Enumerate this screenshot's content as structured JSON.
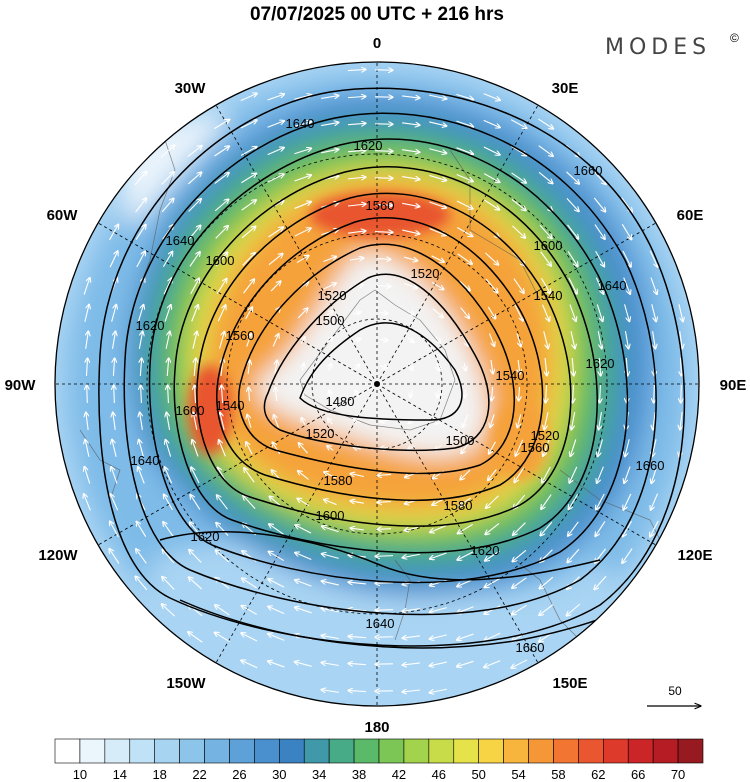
{
  "title": "07/07/2025  00 UTC  + 216 hrs",
  "brand": "MODES",
  "brand_mark": "©",
  "longitude_labels": {
    "top": "0",
    "bottom": "180",
    "left": "90W",
    "right": "90E",
    "nw1": "30W",
    "nw2": "60W",
    "ne1": "30E",
    "ne2": "60E",
    "sw1": "120W",
    "sw2": "150W",
    "se1": "120E",
    "se2": "150E"
  },
  "contour_labels": [
    "1480",
    "1500",
    "1500",
    "1520",
    "1520",
    "1520",
    "1520",
    "1540",
    "1540",
    "1540",
    "1560",
    "1560",
    "1560",
    "1580",
    "1580",
    "1600",
    "1600",
    "1600",
    "1600",
    "1620",
    "1620",
    "1620",
    "1620",
    "1620",
    "1640",
    "1640",
    "1640",
    "1640",
    "1640",
    "1660",
    "1660",
    "1660"
  ],
  "reference_vector": "50",
  "colorbar": {
    "tick_labels": [
      "10",
      "14",
      "18",
      "22",
      "26",
      "30",
      "34",
      "38",
      "42",
      "46",
      "50",
      "54",
      "58",
      "62",
      "66",
      "70"
    ],
    "colors": [
      "#ffffff",
      "#eaf5fc",
      "#d6ecf9",
      "#bfe2f6",
      "#a6d4f1",
      "#8cc4ea",
      "#74b3e2",
      "#5ea1d8",
      "#4a90ce",
      "#3b82c2",
      "#3f99a8",
      "#48ab88",
      "#5bb96a",
      "#7cc655",
      "#a3d24c",
      "#c7dc48",
      "#e6e24a",
      "#f6d444",
      "#f7b53d",
      "#f59637",
      "#f27632",
      "#ea5630",
      "#de3a2c",
      "#cc2528",
      "#b51c24",
      "#961a1f"
    ]
  },
  "shading_colors": {
    "calm": "#f3f3f3",
    "weak": "#a9d4f3",
    "light": "#7ebbe8",
    "mid": "#4b8fcf",
    "teal": "#3fa39a",
    "green": "#6dbf55",
    "yellow": "#e1df48",
    "orange": "#f5a23a",
    "red": "#e8542f",
    "land": "#d9d9d9"
  }
}
